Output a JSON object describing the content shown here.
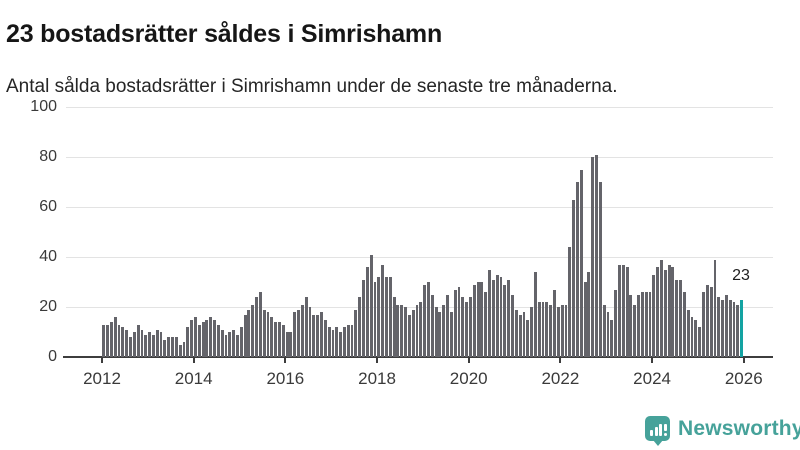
{
  "header": {
    "title": "23 bostadsrätter såldes i Simrishamn",
    "subtitle": "Antal sålda bostadsrätter i Simrishamn under de senaste tre månaderna."
  },
  "chart": {
    "y_ticks": [
      0,
      20,
      40,
      60,
      80,
      100
    ],
    "x_ticks": [
      2012,
      2014,
      2016,
      2018,
      2020,
      2022,
      2024,
      2026
    ],
    "annotation_label": "23",
    "colors": {
      "bar": "#64646a",
      "highlight": "#13a3a2",
      "grid": "#e3e3e3",
      "axis": "#3d3d3d",
      "brand": "#46a29a"
    }
  },
  "chart_data": {
    "type": "bar",
    "title": "23 bostadsrätter såldes i Simrishamn",
    "subtitle": "Antal sålda bostadsrätter i Simrishamn under de senaste tre månaderna.",
    "x_start": "2012-01",
    "x_end": "2025-12",
    "x_frequency": "monthly",
    "xlabel": "",
    "ylabel": "",
    "ylim": [
      0,
      100
    ],
    "grid": "horizontal",
    "highlight_index": 167,
    "highlight_value": 23,
    "highlight_label": "23",
    "values": [
      13,
      13,
      14,
      16,
      13,
      12,
      11,
      8,
      10,
      13,
      11,
      9,
      10,
      9,
      11,
      10,
      7,
      8,
      8,
      8,
      5,
      6,
      12,
      15,
      16,
      13,
      14,
      15,
      16,
      15,
      13,
      11,
      9,
      10,
      11,
      9,
      12,
      17,
      19,
      21,
      24,
      26,
      19,
      18,
      16,
      14,
      14,
      13,
      10,
      10,
      18,
      19,
      21,
      24,
      20,
      17,
      17,
      18,
      15,
      12,
      11,
      12,
      10,
      12,
      13,
      13,
      19,
      24,
      31,
      36,
      41,
      30,
      32,
      37,
      32,
      32,
      24,
      21,
      21,
      20,
      17,
      19,
      21,
      22,
      29,
      30,
      25,
      20,
      18,
      21,
      25,
      18,
      27,
      28,
      24,
      22,
      24,
      29,
      30,
      30,
      26,
      35,
      31,
      33,
      32,
      29,
      31,
      25,
      19,
      17,
      18,
      15,
      20,
      34,
      22,
      22,
      22,
      21,
      27,
      20,
      21,
      21,
      44,
      63,
      70,
      75,
      30,
      34,
      80,
      81,
      70,
      21,
      18,
      15,
      27,
      37,
      37,
      36,
      25,
      21,
      25,
      26,
      26,
      26,
      33,
      36,
      39,
      35,
      37,
      36,
      31,
      31,
      26,
      19,
      16,
      15,
      12,
      26,
      29,
      28,
      39,
      24,
      23,
      25,
      23,
      22,
      21,
      23
    ]
  },
  "footer": {
    "brand": "Newsworthy"
  }
}
